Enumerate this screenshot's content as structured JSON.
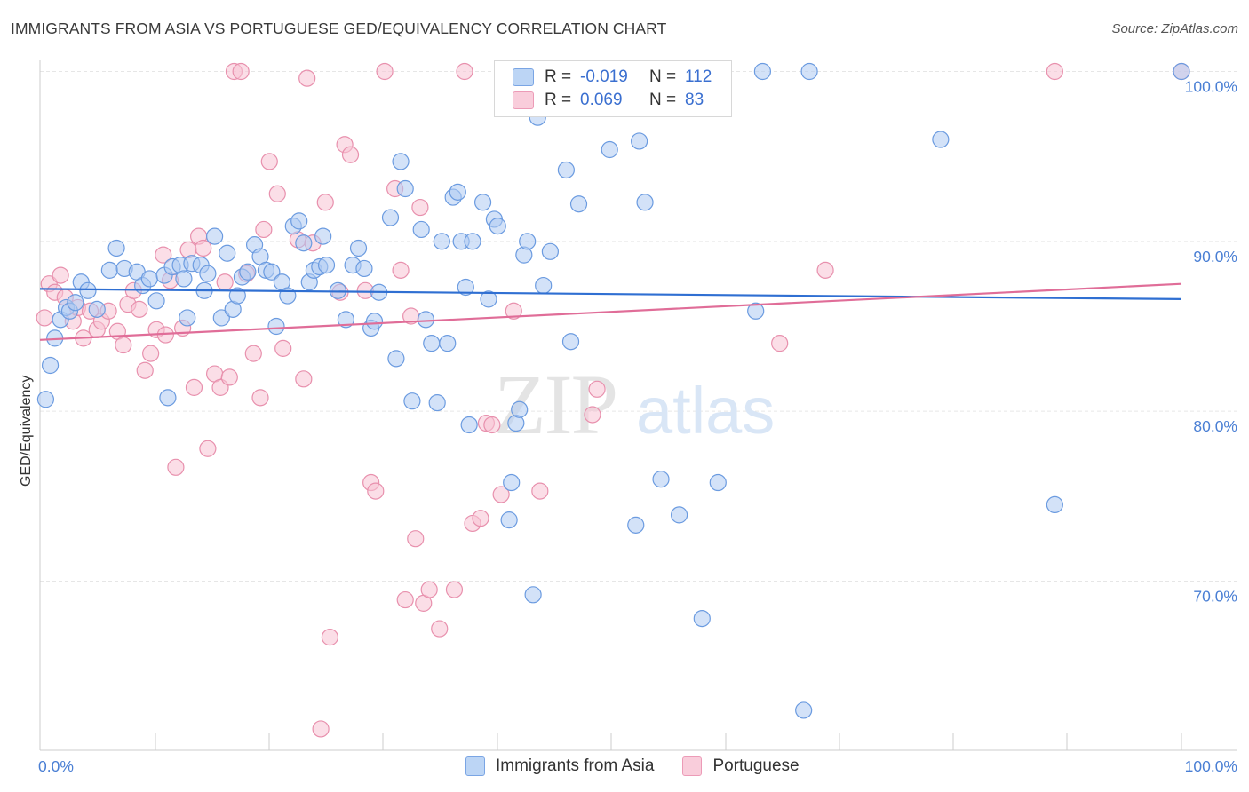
{
  "title": "IMMIGRANTS FROM ASIA VS PORTUGUESE GED/EQUIVALENCY CORRELATION CHART",
  "source": "Source: ZipAtlas.com",
  "watermark": {
    "zip": "ZIP",
    "atlas": "atlas"
  },
  "legend_top": [
    {
      "r_label": "R =",
      "r_value": "-0.019",
      "n_label": "N =",
      "n_value": "112"
    },
    {
      "r_label": "R =",
      "r_value": "0.069",
      "n_label": "N =",
      "n_value": "83"
    }
  ],
  "legend_bottom": [
    "Immigrants from Asia",
    "Portuguese"
  ],
  "colors": {
    "blue_fill": "#aecbf2",
    "blue_stroke": "#6b9be0",
    "blue_line": "#2f6fd2",
    "pink_fill": "#f7c3d3",
    "pink_stroke": "#e890ad",
    "pink_line": "#e06d98",
    "grid": "#e6e6e6",
    "axis_text": "#4a7fd4"
  },
  "chart_data": {
    "type": "scatter",
    "title": "IMMIGRANTS FROM ASIA VS PORTUGUESE GED/EQUIVALENCY CORRELATION CHART",
    "xlabel": "",
    "ylabel": "GED/Equivalency",
    "xlim": [
      0,
      100
    ],
    "ylim": [
      61,
      102
    ],
    "x_tick_labels": [
      "0.0%",
      "100.0%"
    ],
    "y_ticks": [
      70,
      80,
      90,
      100
    ],
    "y_tick_labels": [
      "70.0%",
      "80.0%",
      "90.0%",
      "100.0%"
    ],
    "grid": true,
    "legend_position": "top-center",
    "series": [
      {
        "name": "Immigrants from Asia",
        "R": -0.019,
        "N": 112,
        "trend": {
          "x": [
            0,
            100
          ],
          "y": [
            87.2,
            86.6
          ]
        },
        "points": [
          [
            0.5,
            80.7
          ],
          [
            0.9,
            82.7
          ],
          [
            1.3,
            84.3
          ],
          [
            1.8,
            85.4
          ],
          [
            2.3,
            86.1
          ],
          [
            2.6,
            85.9
          ],
          [
            3.1,
            86.4
          ],
          [
            3.6,
            87.6
          ],
          [
            4.2,
            87.1
          ],
          [
            5.0,
            86.0
          ],
          [
            6.1,
            88.3
          ],
          [
            6.7,
            89.6
          ],
          [
            7.4,
            88.4
          ],
          [
            8.5,
            88.2
          ],
          [
            9.0,
            87.4
          ],
          [
            9.6,
            87.8
          ],
          [
            10.2,
            86.5
          ],
          [
            10.9,
            88.0
          ],
          [
            11.2,
            80.8
          ],
          [
            11.6,
            88.5
          ],
          [
            12.3,
            88.6
          ],
          [
            12.6,
            87.8
          ],
          [
            12.9,
            85.5
          ],
          [
            13.3,
            88.7
          ],
          [
            14.1,
            88.6
          ],
          [
            14.4,
            87.1
          ],
          [
            14.7,
            88.1
          ],
          [
            15.3,
            90.3
          ],
          [
            15.9,
            85.5
          ],
          [
            16.4,
            89.3
          ],
          [
            16.9,
            86.0
          ],
          [
            17.3,
            86.8
          ],
          [
            17.7,
            87.9
          ],
          [
            18.2,
            88.2
          ],
          [
            18.8,
            89.8
          ],
          [
            19.3,
            89.1
          ],
          [
            19.8,
            88.3
          ],
          [
            20.3,
            88.2
          ],
          [
            20.7,
            85.0
          ],
          [
            21.2,
            87.6
          ],
          [
            21.7,
            86.8
          ],
          [
            22.2,
            90.9
          ],
          [
            22.7,
            91.2
          ],
          [
            23.1,
            89.9
          ],
          [
            23.6,
            87.6
          ],
          [
            24.0,
            88.3
          ],
          [
            24.5,
            88.5
          ],
          [
            24.8,
            90.3
          ],
          [
            25.1,
            88.6
          ],
          [
            26.1,
            87.1
          ],
          [
            26.8,
            85.4
          ],
          [
            27.4,
            88.6
          ],
          [
            27.9,
            89.6
          ],
          [
            28.4,
            88.4
          ],
          [
            29.0,
            84.9
          ],
          [
            29.3,
            85.3
          ],
          [
            29.7,
            87.0
          ],
          [
            30.7,
            91.4
          ],
          [
            31.2,
            83.1
          ],
          [
            31.6,
            94.7
          ],
          [
            32.0,
            93.1
          ],
          [
            32.6,
            80.6
          ],
          [
            33.4,
            90.7
          ],
          [
            33.8,
            85.4
          ],
          [
            34.3,
            84.0
          ],
          [
            34.8,
            80.5
          ],
          [
            35.2,
            90.0
          ],
          [
            35.7,
            84.0
          ],
          [
            36.2,
            92.6
          ],
          [
            36.6,
            92.9
          ],
          [
            36.9,
            90.0
          ],
          [
            37.3,
            87.3
          ],
          [
            37.6,
            79.2
          ],
          [
            37.9,
            90.0
          ],
          [
            38.8,
            92.3
          ],
          [
            39.3,
            86.6
          ],
          [
            39.8,
            91.3
          ],
          [
            40.1,
            90.9
          ],
          [
            41.1,
            73.6
          ],
          [
            41.3,
            75.8
          ],
          [
            41.7,
            79.3
          ],
          [
            42.0,
            80.1
          ],
          [
            42.4,
            89.2
          ],
          [
            42.7,
            90.0
          ],
          [
            43.2,
            69.2
          ],
          [
            43.6,
            97.3
          ],
          [
            44.1,
            87.4
          ],
          [
            44.7,
            89.4
          ],
          [
            46.1,
            94.2
          ],
          [
            46.5,
            84.1
          ],
          [
            47.2,
            92.2
          ],
          [
            48.0,
            98.2
          ],
          [
            49.9,
            95.4
          ],
          [
            52.2,
            73.3
          ],
          [
            52.5,
            95.9
          ],
          [
            53.0,
            92.3
          ],
          [
            53.5,
            98.7
          ],
          [
            54.4,
            76.0
          ],
          [
            56.0,
            73.9
          ],
          [
            56.8,
            99.8
          ],
          [
            58.0,
            67.8
          ],
          [
            59.4,
            75.8
          ],
          [
            62.7,
            85.9
          ],
          [
            63.3,
            100.0
          ],
          [
            66.9,
            62.4
          ],
          [
            67.4,
            100.0
          ],
          [
            78.9,
            96.0
          ],
          [
            88.9,
            74.5
          ],
          [
            100.0,
            100.0
          ]
        ]
      },
      {
        "name": "Portuguese",
        "R": 0.069,
        "N": 83,
        "trend": {
          "x": [
            0,
            100
          ],
          "y": [
            84.2,
            87.5
          ]
        },
        "points": [
          [
            0.4,
            85.5
          ],
          [
            0.8,
            87.5
          ],
          [
            1.3,
            87.0
          ],
          [
            1.8,
            88.0
          ],
          [
            2.2,
            86.7
          ],
          [
            2.9,
            85.3
          ],
          [
            3.3,
            86.1
          ],
          [
            3.8,
            84.3
          ],
          [
            4.4,
            85.9
          ],
          [
            5.0,
            84.8
          ],
          [
            5.4,
            85.3
          ],
          [
            6.0,
            85.9
          ],
          [
            6.8,
            84.7
          ],
          [
            7.3,
            83.9
          ],
          [
            7.7,
            86.3
          ],
          [
            8.2,
            87.1
          ],
          [
            8.7,
            86.0
          ],
          [
            9.2,
            82.4
          ],
          [
            9.7,
            83.4
          ],
          [
            10.2,
            84.8
          ],
          [
            10.8,
            89.2
          ],
          [
            11.0,
            84.5
          ],
          [
            11.4,
            87.7
          ],
          [
            11.9,
            76.7
          ],
          [
            12.5,
            84.9
          ],
          [
            13.0,
            89.5
          ],
          [
            13.5,
            81.4
          ],
          [
            13.9,
            90.3
          ],
          [
            14.3,
            89.6
          ],
          [
            14.7,
            77.8
          ],
          [
            15.3,
            82.2
          ],
          [
            15.8,
            81.4
          ],
          [
            16.2,
            87.6
          ],
          [
            16.6,
            82.0
          ],
          [
            17.0,
            100.0
          ],
          [
            17.6,
            100.0
          ],
          [
            18.1,
            88.1
          ],
          [
            18.7,
            83.4
          ],
          [
            19.3,
            80.8
          ],
          [
            19.6,
            90.7
          ],
          [
            20.1,
            94.7
          ],
          [
            20.8,
            92.8
          ],
          [
            21.3,
            83.7
          ],
          [
            22.6,
            90.1
          ],
          [
            23.1,
            81.9
          ],
          [
            23.4,
            99.6
          ],
          [
            23.9,
            89.9
          ],
          [
            24.6,
            61.3
          ],
          [
            25.0,
            92.3
          ],
          [
            25.4,
            66.7
          ],
          [
            26.3,
            87.0
          ],
          [
            26.7,
            95.7
          ],
          [
            27.2,
            95.1
          ],
          [
            28.5,
            87.1
          ],
          [
            29.0,
            75.8
          ],
          [
            29.4,
            75.3
          ],
          [
            30.2,
            100.0
          ],
          [
            31.1,
            93.1
          ],
          [
            31.6,
            88.3
          ],
          [
            32.0,
            68.9
          ],
          [
            32.5,
            85.6
          ],
          [
            32.9,
            72.5
          ],
          [
            33.3,
            92.0
          ],
          [
            33.6,
            68.7
          ],
          [
            34.1,
            69.5
          ],
          [
            35.0,
            67.2
          ],
          [
            36.3,
            69.5
          ],
          [
            37.2,
            100.0
          ],
          [
            37.9,
            73.4
          ],
          [
            38.6,
            73.7
          ],
          [
            39.1,
            79.3
          ],
          [
            39.6,
            79.2
          ],
          [
            40.4,
            75.1
          ],
          [
            41.5,
            85.9
          ],
          [
            43.8,
            75.3
          ],
          [
            48.4,
            79.8
          ],
          [
            48.8,
            81.3
          ],
          [
            64.8,
            84.0
          ],
          [
            68.8,
            88.3
          ],
          [
            88.9,
            100.0
          ],
          [
            100.0,
            100.0
          ]
        ]
      }
    ]
  }
}
